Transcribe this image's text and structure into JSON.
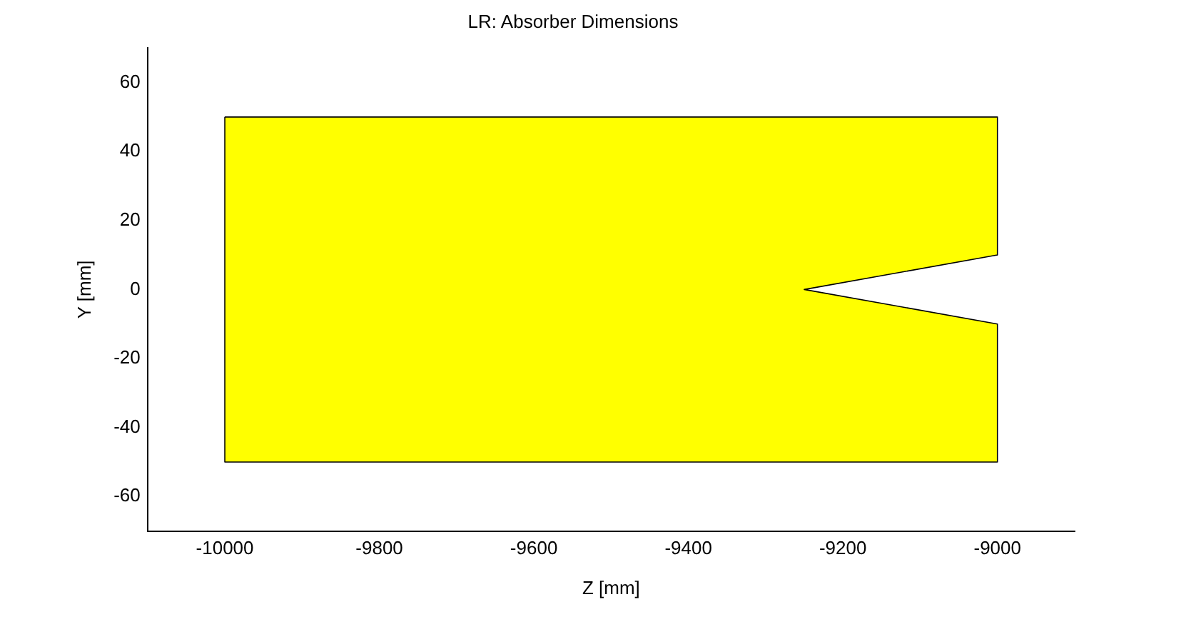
{
  "chart_data": {
    "type": "area",
    "title": "LR: Absorber Dimensions",
    "xlabel": "Z [mm]",
    "ylabel": "Y [mm]",
    "series": [
      {
        "color": "#ffff00",
        "x": [
          -10000,
          -9000,
          -9000,
          -9250,
          -9000,
          -9000,
          -10000,
          -10000
        ],
        "values": [
          50,
          50,
          10,
          0,
          -10,
          -50,
          -50,
          50
        ]
      }
    ],
    "xlim": [
      -10100,
      -8900
    ],
    "xticks": [
      -10000,
      -9800,
      -9600,
      -9400,
      -9200,
      -9000
    ],
    "ylim": [
      -70,
      70
    ],
    "yticks": [
      -60,
      -40,
      -20,
      0,
      20,
      40,
      60
    ],
    "grid": false,
    "legend": false,
    "marker": "none"
  }
}
